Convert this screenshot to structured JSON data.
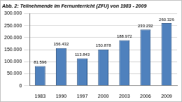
{
  "chart_data": {
    "type": "bar",
    "title": "Abb. 2: Teilnehmende im Fernunterricht (ZFU) von 1983 - 2009",
    "categories": [
      "1983",
      "1990",
      "1997",
      "2000",
      "2003",
      "2006",
      "2009"
    ],
    "values": [
      81596,
      156432,
      113843,
      150878,
      188972,
      233232,
      260326
    ],
    "value_labels": [
      "81.596",
      "156.432",
      "113.843",
      "150.878",
      "188.972",
      "233.232",
      "260.326"
    ],
    "data_labels": true,
    "color": "#4f81bd",
    "ylim": [
      0,
      300000
    ],
    "yticks": [
      0,
      {
        "value": 50000,
        "label": "50.000"
      },
      {
        "value": 100000,
        "label": "100.000"
      },
      {
        "value": 150000,
        "label": "150.000"
      },
      {
        "value": 200000,
        "label": "200.000"
      },
      {
        "value": 250000,
        "label": "250.000"
      },
      {
        "value": 300000,
        "label": "300.000"
      }
    ],
    "grid": true
  }
}
